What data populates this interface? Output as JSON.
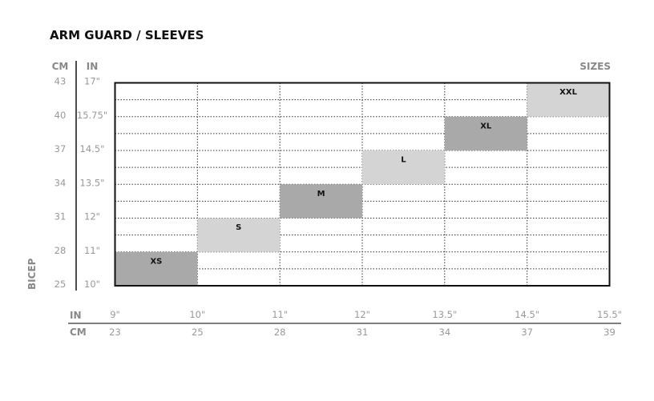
{
  "title": "ARM GUARD / SLEEVES",
  "sizes_label": "SIZES",
  "chart_data": {
    "type": "heatmap",
    "title": "ARM GUARD / SLEEVES",
    "y_axis": {
      "label": "BICEP",
      "headers": {
        "cm": "CM",
        "in": "IN"
      },
      "ticks_cm": [
        "25",
        "28",
        "31",
        "34",
        "37",
        "40",
        "43"
      ],
      "ticks_in": [
        "10\"",
        "11\"",
        "12\"",
        "13.5\"",
        "14.5\"",
        "15.75\"",
        "17\""
      ],
      "range_in": [
        10,
        17
      ]
    },
    "x_axis": {
      "headers": {
        "in": "IN",
        "cm": "CM"
      },
      "ticks_in": [
        "9\"",
        "10\"",
        "11\"",
        "12\"",
        "13.5\"",
        "14.5\"",
        "15.5\""
      ],
      "ticks_cm": [
        "23",
        "25",
        "28",
        "31",
        "34",
        "37",
        "39"
      ]
    },
    "grid": true,
    "colors": {
      "dark": "#a9a9a9",
      "light": "#d4d4d4"
    },
    "sizes": [
      {
        "label": "XS",
        "column": 0,
        "bicep_in": [
          "10\"",
          "11\""
        ],
        "shade": "dark"
      },
      {
        "label": "S",
        "column": 1,
        "bicep_in": [
          "11\"",
          "12\""
        ],
        "shade": "light"
      },
      {
        "label": "M",
        "column": 2,
        "bicep_in": [
          "12\"",
          "13.5\""
        ],
        "shade": "dark"
      },
      {
        "label": "L",
        "column": 3,
        "bicep_in": [
          "13.5\"",
          "14.5\""
        ],
        "shade": "light"
      },
      {
        "label": "XL",
        "column": 4,
        "bicep_in": [
          "14.5\"",
          "15.75\""
        ],
        "shade": "dark"
      },
      {
        "label": "XXL",
        "column": 5,
        "bicep_in": [
          "15.75\"",
          "17\""
        ],
        "shade": "light"
      }
    ]
  }
}
